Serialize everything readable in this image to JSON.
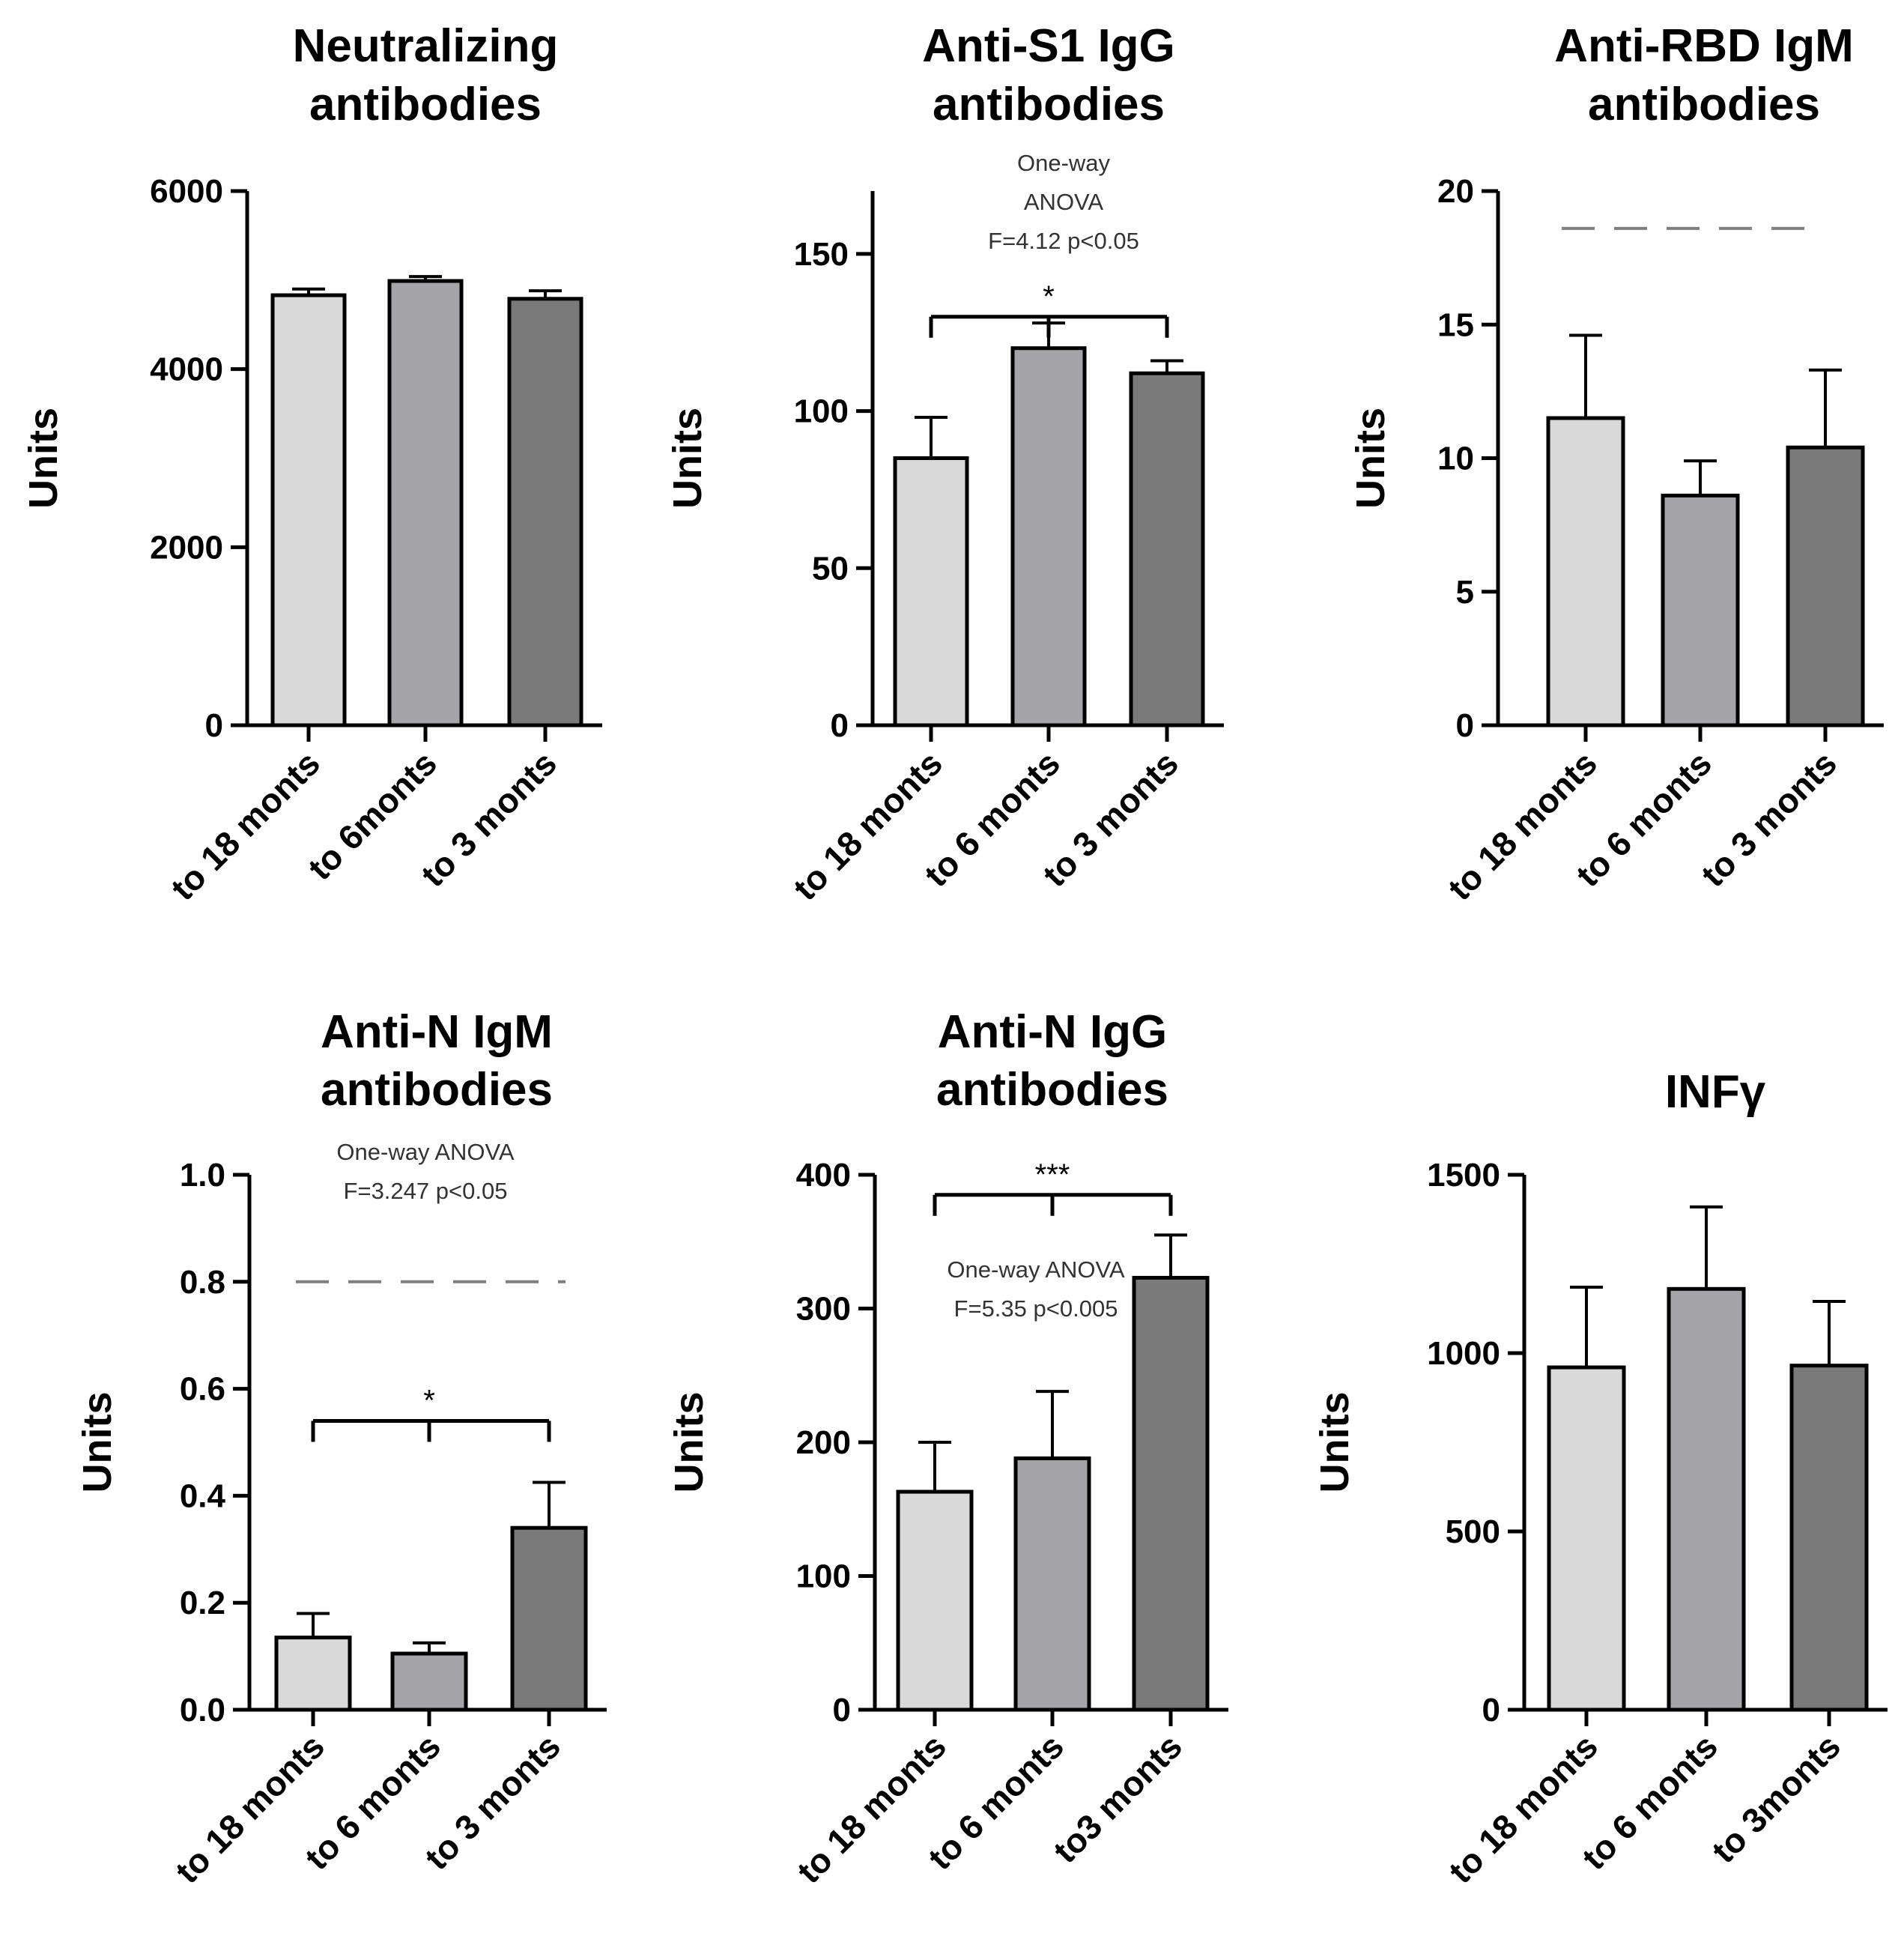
{
  "figure": {
    "colors": {
      "light": "#d9d9d9",
      "medium": "#a4a4a8",
      "dark": "#7a7a7a",
      "axis": "#000000",
      "dashed": "#7f7f7f"
    }
  },
  "chart_data": [
    {
      "type": "bar",
      "title_lines": [
        "Neutralizing",
        "antibodies"
      ],
      "ylabel": "Units",
      "ylim": [
        0,
        6000
      ],
      "yticks": [
        0,
        2000,
        4000,
        6000
      ],
      "categories": [
        "to 18 monts",
        "to 6monts",
        "to 3 monts"
      ],
      "values": [
        4830,
        4990,
        4790
      ],
      "errors": [
        70,
        50,
        90
      ],
      "bar_colors": [
        "light",
        "medium",
        "dark"
      ]
    },
    {
      "type": "bar",
      "title_lines": [
        "Anti-S1 IgG",
        "antibodies"
      ],
      "ylabel": "Units",
      "ylim": [
        0,
        170
      ],
      "yticks": [
        0,
        50,
        100,
        150
      ],
      "categories": [
        "to 18 monts",
        "to 6 monts",
        "to 3 monts"
      ],
      "values": [
        85,
        120,
        112
      ],
      "errors": [
        13,
        8,
        4
      ],
      "bar_colors": [
        "light",
        "medium",
        "dark"
      ],
      "annotation_lines": [
        "One-way",
        "ANOVA",
        "F=4.12 p<0.05"
      ],
      "bracket": {
        "at": 130,
        "from": 0,
        "to": 2,
        "mid": 1,
        "label": "*"
      }
    },
    {
      "type": "bar",
      "title_lines": [
        "Anti-RBD IgM",
        "antibodies"
      ],
      "ylabel": "Units",
      "ylim": [
        0,
        20
      ],
      "yticks": [
        0,
        5,
        10,
        15,
        20
      ],
      "categories": [
        "to 18 monts",
        "to 6 monts",
        "to 3 monts"
      ],
      "values": [
        11.5,
        8.6,
        10.4
      ],
      "errors": [
        3.1,
        1.3,
        2.9
      ],
      "bar_colors": [
        "light",
        "medium",
        "dark"
      ],
      "dashed_line": 18.6
    },
    {
      "type": "bar",
      "title_lines": [
        "Anti-N IgM",
        "antibodies"
      ],
      "ylabel": "Units",
      "ylim": [
        0,
        1.0
      ],
      "yticks": [
        0.0,
        0.2,
        0.4,
        0.6,
        0.8,
        1.0
      ],
      "ytick_labels": [
        "0.0",
        "0.2",
        "0.4",
        "0.6",
        "0.8",
        "1.0"
      ],
      "categories": [
        "to 18 monts",
        "to 6 monts",
        "to 3 monts"
      ],
      "values": [
        0.135,
        0.105,
        0.34
      ],
      "errors": [
        0.045,
        0.02,
        0.085
      ],
      "bar_colors": [
        "light",
        "medium",
        "dark"
      ],
      "annotation_lines": [
        "One-way ANOVA",
        "F=3.247 p<0.05"
      ],
      "dashed_line": 0.8,
      "bracket": {
        "at": 0.54,
        "from": 0,
        "to": 2,
        "mid": 1,
        "label": "*"
      }
    },
    {
      "type": "bar",
      "title_lines": [
        "Anti-N IgG",
        "antibodies"
      ],
      "ylabel": "Units",
      "ylim": [
        0,
        400
      ],
      "yticks": [
        0,
        100,
        200,
        300,
        400
      ],
      "categories": [
        "to 18  monts",
        "to 6 monts",
        "to3 monts"
      ],
      "values": [
        163,
        188,
        323
      ],
      "errors": [
        37,
        50,
        32
      ],
      "bar_colors": [
        "light",
        "medium",
        "dark"
      ],
      "annotation_lines": [
        "One-way ANOVA",
        "F=5.35  p<0.005"
      ],
      "bracket": {
        "at": 385,
        "from": 0,
        "to": 2,
        "mid": 1,
        "label": "***"
      }
    },
    {
      "type": "bar",
      "title_lines": [
        "INFγ"
      ],
      "ylabel": "Units",
      "ylim": [
        0,
        1500
      ],
      "yticks": [
        0,
        500,
        1000,
        1500
      ],
      "categories": [
        "to 18 monts",
        "to 6 monts",
        "to 3monts"
      ],
      "values": [
        960,
        1180,
        965
      ],
      "errors": [
        225,
        230,
        180
      ],
      "bar_colors": [
        "light",
        "medium",
        "dark"
      ]
    }
  ]
}
